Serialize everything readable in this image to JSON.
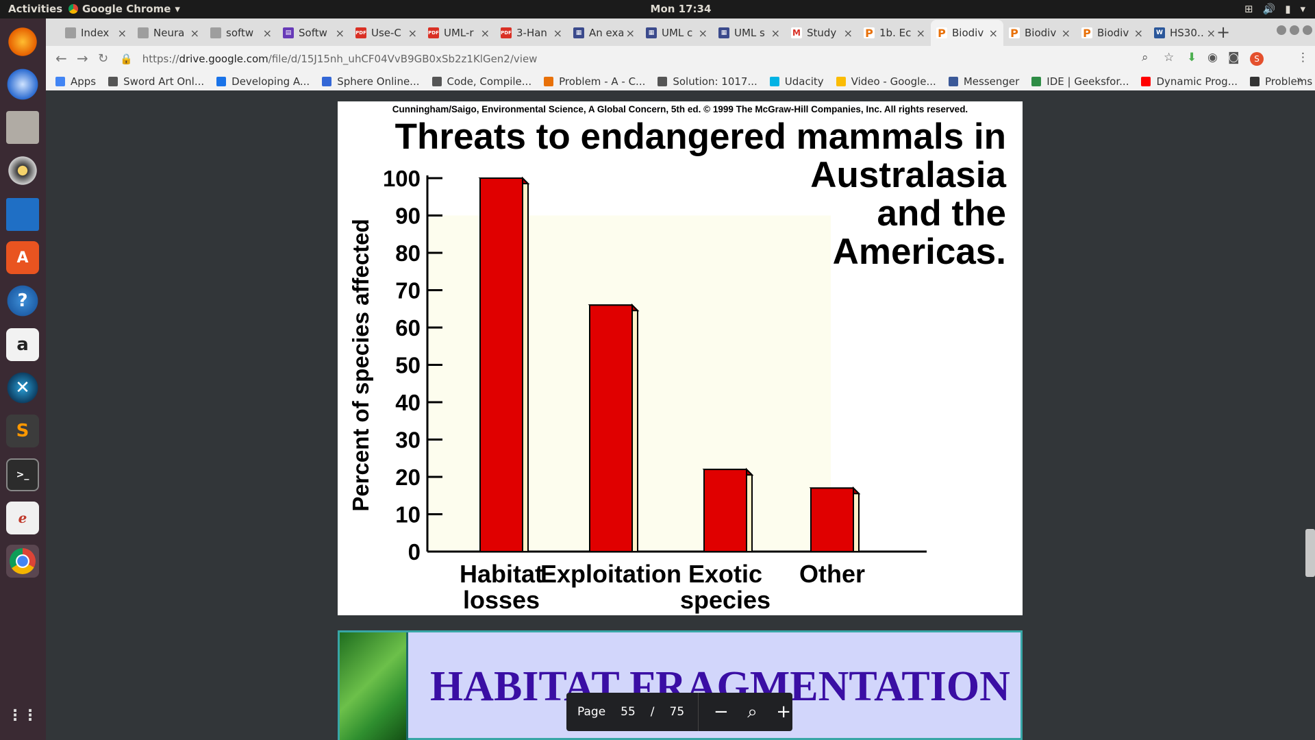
{
  "os": {
    "activities": "Activities",
    "app_name": "Google Chrome",
    "clock": "Mon 17:34"
  },
  "tabs": [
    {
      "label": "Index",
      "icon": "doc",
      "active": false
    },
    {
      "label": "Neura",
      "icon": "doc",
      "active": false
    },
    {
      "label": "softw",
      "icon": "doc",
      "active": false
    },
    {
      "label": "Softw",
      "icon": "forms",
      "active": false
    },
    {
      "label": "Use-C",
      "icon": "pdf",
      "active": false
    },
    {
      "label": "UML-r",
      "icon": "pdf",
      "active": false
    },
    {
      "label": "3-Han",
      "icon": "pdf",
      "active": false
    },
    {
      "label": "An exa",
      "icon": "uml",
      "active": false
    },
    {
      "label": "UML c",
      "icon": "uml",
      "active": false
    },
    {
      "label": "UML s",
      "icon": "uml",
      "active": false
    },
    {
      "label": "Study",
      "icon": "gmail",
      "active": false
    },
    {
      "label": "1b. Ec",
      "icon": "ppt",
      "active": false
    },
    {
      "label": "Biodiv",
      "icon": "ppt",
      "active": true
    },
    {
      "label": "Biodiv",
      "icon": "ppt",
      "active": false
    },
    {
      "label": "Biodiv",
      "icon": "ppt",
      "active": false
    },
    {
      "label": "HS30…",
      "icon": "word",
      "active": false
    }
  ],
  "address": {
    "scheme": "https://",
    "host": "drive.google.com",
    "path": "/file/d/15J15nh_uhCF04VvB9GB0xSb2z1KlGen2/view"
  },
  "bookmarks": [
    {
      "label": "Apps",
      "color": "#4285f4"
    },
    {
      "label": "Sword Art Onl...",
      "color": "#555555"
    },
    {
      "label": "Developing A...",
      "color": "#1a73e8"
    },
    {
      "label": "Sphere Online...",
      "color": "#3367d6"
    },
    {
      "label": "Code, Compile...",
      "color": "#555555"
    },
    {
      "label": "Problem - A - C...",
      "color": "#e8710a"
    },
    {
      "label": "Solution: 1017...",
      "color": "#555555"
    },
    {
      "label": "Udacity",
      "color": "#02b3e4"
    },
    {
      "label": "Video - Google...",
      "color": "#fbbc04"
    },
    {
      "label": "Messenger",
      "color": "#3b5998"
    },
    {
      "label": "IDE | Geeksfor...",
      "color": "#2f8d46"
    },
    {
      "label": "Dynamic Prog...",
      "color": "#ff0000"
    },
    {
      "label": "Problems",
      "color": "#333333"
    }
  ],
  "pdf": {
    "credit": "Cunningham/Saigo, Environmental Science, A Global Concern, 5th ed. © 1999 The McGraw-Hill Companies, Inc. All rights reserved.",
    "next_slide_title": "HABITAT FRAGMENTATION"
  },
  "chart_data": {
    "type": "bar",
    "title_line1": "Threats to endangered mammals in",
    "title_rest": "Australasia and the Americas.",
    "ylabel": "Percent of species affected",
    "xlabel": "",
    "categories": [
      "Habitat losses",
      "Exploitation",
      "Exotic species",
      "Other"
    ],
    "values": [
      100,
      66,
      22,
      17
    ],
    "ylim": [
      0,
      100
    ],
    "yticks": [
      0,
      10,
      20,
      30,
      40,
      50,
      60,
      70,
      80,
      90,
      100
    ],
    "bar_color": "#e00000",
    "grid": false
  },
  "pager": {
    "label": "Page",
    "current": "55",
    "separator": "/",
    "total": "75"
  }
}
